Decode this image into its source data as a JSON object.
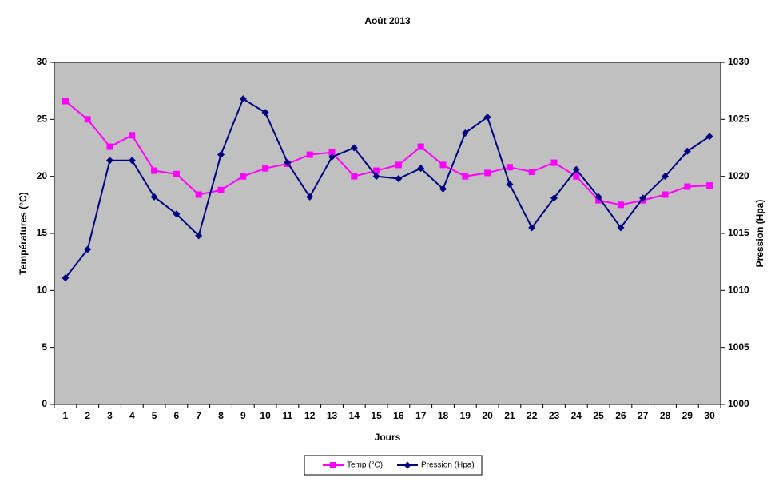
{
  "chart_data": {
    "type": "line",
    "title": "Août 2013",
    "x_label": "Jours",
    "y_label": "Températures (°C)",
    "y2_label": "Pression (Hpa)",
    "categories": [
      1,
      2,
      3,
      4,
      5,
      6,
      7,
      8,
      9,
      10,
      11,
      12,
      13,
      14,
      15,
      16,
      17,
      18,
      19,
      20,
      21,
      22,
      23,
      24,
      25,
      26,
      27,
      28,
      29,
      30
    ],
    "series": [
      {
        "name": "Temp (°C)",
        "color": "#ff00ff",
        "marker": "square",
        "values": [
          26.6,
          25.0,
          22.6,
          23.6,
          20.5,
          20.2,
          18.4,
          18.8,
          20.0,
          20.7,
          21.1,
          21.9,
          22.1,
          20.0,
          20.5,
          21.0,
          22.6,
          21.0,
          20.0,
          20.3,
          20.8,
          20.4,
          21.2,
          20.0,
          17.9,
          17.5,
          17.9,
          18.4,
          19.1,
          19.2
        ]
      },
      {
        "name": "Pression (Hpa)",
        "color": "#000080",
        "marker": "diamond",
        "axis": "y2",
        "values": [
          1011.1,
          1013.6,
          1021.4,
          1021.4,
          1018.2,
          1016.7,
          1014.8,
          1021.9,
          1026.8,
          1025.6,
          1021.2,
          1018.2,
          1021.7,
          1022.5,
          1020.0,
          1019.8,
          1020.7,
          1018.9,
          1023.8,
          1025.2,
          1019.3,
          1015.5,
          1018.1,
          1020.6,
          1018.2,
          1015.5,
          1018.1,
          1020.0,
          1022.2,
          1023.5
        ]
      }
    ],
    "ylim": [
      0,
      30
    ],
    "yticks": [
      0,
      5,
      10,
      15,
      20,
      25,
      30
    ],
    "y2lim": [
      1000,
      1030
    ],
    "y2ticks": [
      1000,
      1005,
      1010,
      1015,
      1020,
      1025,
      1030
    ],
    "grid": false,
    "legend_position": "bottom",
    "plot_background": "#c0c0c0"
  }
}
